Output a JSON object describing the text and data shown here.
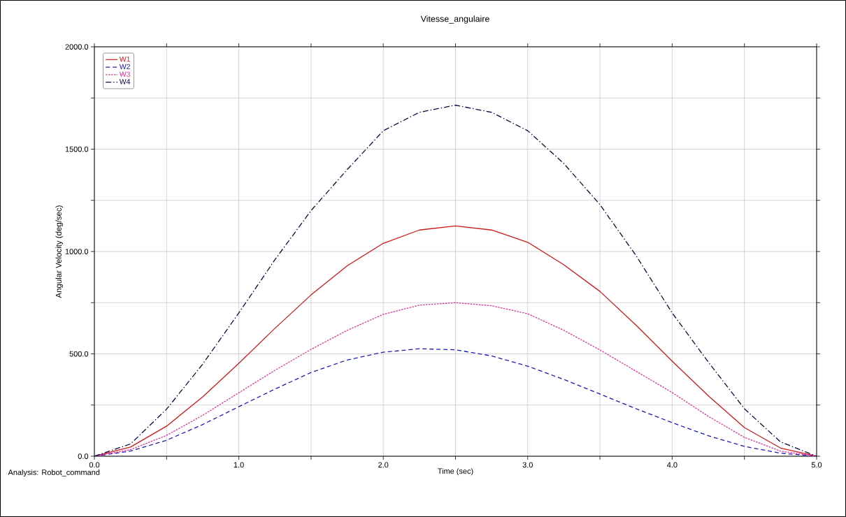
{
  "chart_data": {
    "type": "line",
    "title": "Vitesse_angulaire",
    "xlabel": "Time (sec)",
    "ylabel": "Angular Velocity (deg/sec)",
    "annotations": [
      "Analysis:  Robot_command"
    ],
    "x": [
      0,
      0.25,
      0.5,
      0.75,
      1.0,
      1.25,
      1.5,
      1.75,
      2.0,
      2.25,
      2.5,
      2.75,
      3.0,
      3.25,
      3.5,
      3.75,
      4.0,
      4.25,
      4.5,
      4.75,
      5.0
    ],
    "series": [
      {
        "name": "W1",
        "color": "#cc1a1a",
        "line_style": "solid",
        "values": [
          0,
          45,
          147,
          290,
          454,
          625,
          788,
          930,
          1040,
          1105,
          1125,
          1105,
          1045,
          935,
          805,
          640,
          464,
          295,
          140,
          40,
          0
        ]
      },
      {
        "name": "W2",
        "color": "#1a1ab4",
        "line_style": "dashed",
        "values": [
          0,
          25,
          78,
          155,
          242,
          328,
          409,
          470,
          508,
          525,
          520,
          490,
          440,
          375,
          304,
          232,
          164,
          100,
          48,
          15,
          0
        ]
      },
      {
        "name": "W3",
        "color": "#e0309a",
        "line_style": "dotted",
        "values": [
          0,
          32,
          102,
          200,
          310,
          420,
          522,
          615,
          693,
          738,
          750,
          735,
          696,
          615,
          519,
          415,
          311,
          195,
          92,
          25,
          0
        ]
      },
      {
        "name": "W4",
        "color": "#0a0a40",
        "line_style": "dashdot",
        "values": [
          0,
          60,
          230,
          450,
          700,
          960,
          1200,
          1400,
          1590,
          1680,
          1715,
          1680,
          1590,
          1430,
          1229,
          980,
          700,
          460,
          232,
          70,
          0
        ]
      }
    ],
    "xlim": [
      0,
      5
    ],
    "ylim": [
      0,
      2000
    ],
    "xticks": [
      {
        "value": 0,
        "label": "0.0"
      },
      {
        "value": 0.5,
        "label": null
      },
      {
        "value": 1,
        "label": "1.0"
      },
      {
        "value": 1.5,
        "label": null
      },
      {
        "value": 2,
        "label": "2.0"
      },
      {
        "value": 2.5,
        "label": null
      },
      {
        "value": 3,
        "label": "3.0"
      },
      {
        "value": 3.5,
        "label": null
      },
      {
        "value": 4,
        "label": "4.0"
      },
      {
        "value": 4.5,
        "label": null
      },
      {
        "value": 5,
        "label": "5.0"
      }
    ],
    "yticks": [
      {
        "value": 0,
        "label": "0.0"
      },
      {
        "value": 250,
        "label": null
      },
      {
        "value": 500,
        "label": "500.0"
      },
      {
        "value": 750,
        "label": null
      },
      {
        "value": 1000,
        "label": "1000.0"
      },
      {
        "value": 1250,
        "label": null
      },
      {
        "value": 1500,
        "label": "1500.0"
      },
      {
        "value": 1750,
        "label": null
      },
      {
        "value": 2000,
        "label": "2000.0"
      }
    ],
    "grid": true,
    "legend": "top left"
  }
}
